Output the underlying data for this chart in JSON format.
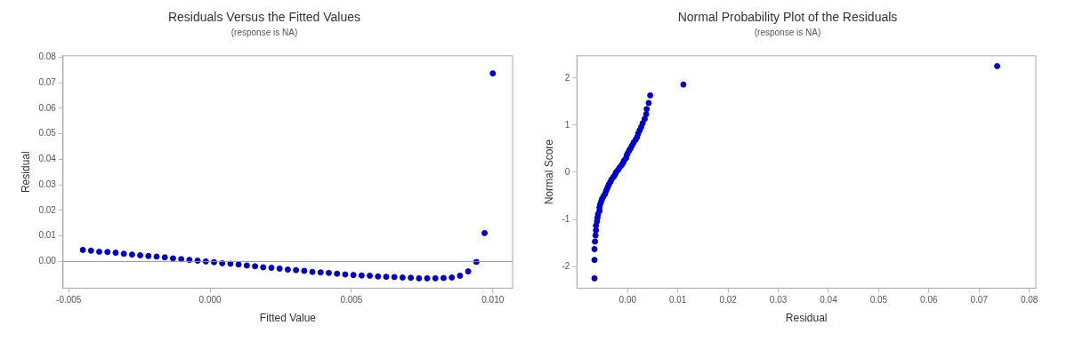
{
  "chart_data": [
    {
      "type": "scatter",
      "title": "Residuals Versus the Fitted Values",
      "subtitle": "(response is NA)",
      "xlabel": "Fitted Value",
      "ylabel": "Residual",
      "x": [
        -0.0045,
        -0.00421,
        -0.00392,
        -0.00363,
        -0.00334,
        -0.00305,
        -0.00276,
        -0.00247,
        -0.00218,
        -0.00189,
        -0.0016,
        -0.00131,
        -0.00102,
        -0.00073,
        -0.00044,
        -0.00015,
        0.00014,
        0.00043,
        0.00072,
        0.00101,
        0.0013,
        0.00159,
        0.00188,
        0.00217,
        0.00246,
        0.00275,
        0.00304,
        0.00333,
        0.00362,
        0.00391,
        0.0042,
        0.00449,
        0.00478,
        0.00507,
        0.00536,
        0.00565,
        0.00594,
        0.00623,
        0.00652,
        0.00681,
        0.0071,
        0.00739,
        0.00768,
        0.00797,
        0.00826,
        0.00855,
        0.00884,
        0.00913,
        0.00942,
        0.00971,
        0.01
      ],
      "series": [
        {
          "color": "#0000cc",
          "values": [
            0.0045,
            0.0042,
            0.0038,
            0.0037,
            0.0034,
            0.003,
            0.0027,
            0.0024,
            0.0021,
            0.0019,
            0.0016,
            0.0012,
            0.0009,
            0.0006,
            0.0003,
            0,
            -0.0003,
            -0.0007,
            -0.0009,
            -0.0012,
            -0.0016,
            -0.0019,
            -0.0023,
            -0.0025,
            -0.0028,
            -0.0032,
            -0.0034,
            -0.0037,
            -0.0041,
            -0.0043,
            -0.0045,
            -0.0048,
            -0.0051,
            -0.0053,
            -0.0055,
            -0.0056,
            -0.0059,
            -0.006,
            -0.0061,
            -0.0063,
            -0.0064,
            -0.0066,
            -0.0066,
            -0.0066,
            -0.0065,
            -0.0063,
            -0.0056,
            -0.0039,
            -0.0002,
            0.0111,
            0.0736
          ]
        }
      ],
      "xlim": [
        -0.0052,
        0.0107
      ],
      "ylim": [
        -0.0105,
        0.0805
      ],
      "xticks": [
        {
          "value": -0.005,
          "label": "-0.005"
        },
        {
          "value": 0,
          "label": "0.000"
        },
        {
          "value": 0.005,
          "label": "0.005"
        },
        {
          "value": 0.01,
          "label": "0.010"
        }
      ],
      "yticks": [
        {
          "value": 0,
          "label": "0.00"
        },
        {
          "value": 0.01,
          "label": "0.01"
        },
        {
          "value": 0.02,
          "label": "0.02"
        },
        {
          "value": 0.03,
          "label": "0.03"
        },
        {
          "value": 0.04,
          "label": "0.04"
        },
        {
          "value": 0.05,
          "label": "0.05"
        },
        {
          "value": 0.06,
          "label": "0.06"
        },
        {
          "value": 0.07,
          "label": "0.07"
        },
        {
          "value": 0.08,
          "label": "0.08"
        }
      ],
      "ref_lines": [
        {
          "axis": "y",
          "value": 0,
          "color": "#999999"
        }
      ],
      "grid": false,
      "legend": false,
      "marker": "circle"
    },
    {
      "type": "scatter",
      "title": "Normal Probability Plot of the Residuals",
      "subtitle": "(response is NA)",
      "xlabel": "Residual",
      "ylabel": "Normal Score",
      "x": [
        -0.0066,
        -0.0066,
        -0.0066,
        -0.0065,
        -0.0064,
        -0.0063,
        -0.0063,
        -0.0061,
        -0.006,
        -0.0059,
        -0.0056,
        -0.0056,
        -0.0055,
        -0.0053,
        -0.0051,
        -0.0048,
        -0.0045,
        -0.0043,
        -0.0041,
        -0.0039,
        -0.0037,
        -0.0034,
        -0.0032,
        -0.0028,
        -0.0025,
        -0.0023,
        -0.0019,
        -0.0016,
        -0.0012,
        -0.0009,
        -0.0007,
        -0.0003,
        -0.0002,
        0,
        0.0003,
        0.0006,
        0.0009,
        0.0012,
        0.0016,
        0.0019,
        0.0021,
        0.0024,
        0.0027,
        0.003,
        0.0034,
        0.0037,
        0.0038,
        0.0042,
        0.0045,
        0.0111,
        0.0736
      ],
      "series": [
        {
          "color": "#0000cc",
          "values": [
            -2.25,
            -1.86,
            -1.63,
            -1.47,
            -1.34,
            -1.23,
            -1.13,
            -1.04,
            -0.96,
            -0.89,
            -0.82,
            -0.75,
            -0.69,
            -0.63,
            -0.57,
            -0.51,
            -0.46,
            -0.4,
            -0.35,
            -0.3,
            -0.25,
            -0.2,
            -0.15,
            -0.1,
            -0.05,
            0,
            0.05,
            0.1,
            0.15,
            0.2,
            0.25,
            0.3,
            0.35,
            0.4,
            0.46,
            0.51,
            0.57,
            0.63,
            0.69,
            0.75,
            0.82,
            0.89,
            0.96,
            1.04,
            1.13,
            1.23,
            1.34,
            1.47,
            1.63,
            1.86,
            2.25
          ]
        }
      ],
      "xlim": [
        -0.0101,
        0.0813
      ],
      "ylim": [
        -2.46,
        2.47
      ],
      "xticks": [
        {
          "value": 0,
          "label": "0.00"
        },
        {
          "value": 0.01,
          "label": "0.01"
        },
        {
          "value": 0.02,
          "label": "0.02"
        },
        {
          "value": 0.03,
          "label": "0.03"
        },
        {
          "value": 0.04,
          "label": "0.04"
        },
        {
          "value": 0.05,
          "label": "0.05"
        },
        {
          "value": 0.06,
          "label": "0.06"
        },
        {
          "value": 0.07,
          "label": "0.07"
        },
        {
          "value": 0.08,
          "label": "0.08"
        }
      ],
      "yticks": [
        -2,
        -1,
        0,
        1,
        2
      ],
      "grid": false,
      "legend": false,
      "marker": "circle"
    }
  ]
}
